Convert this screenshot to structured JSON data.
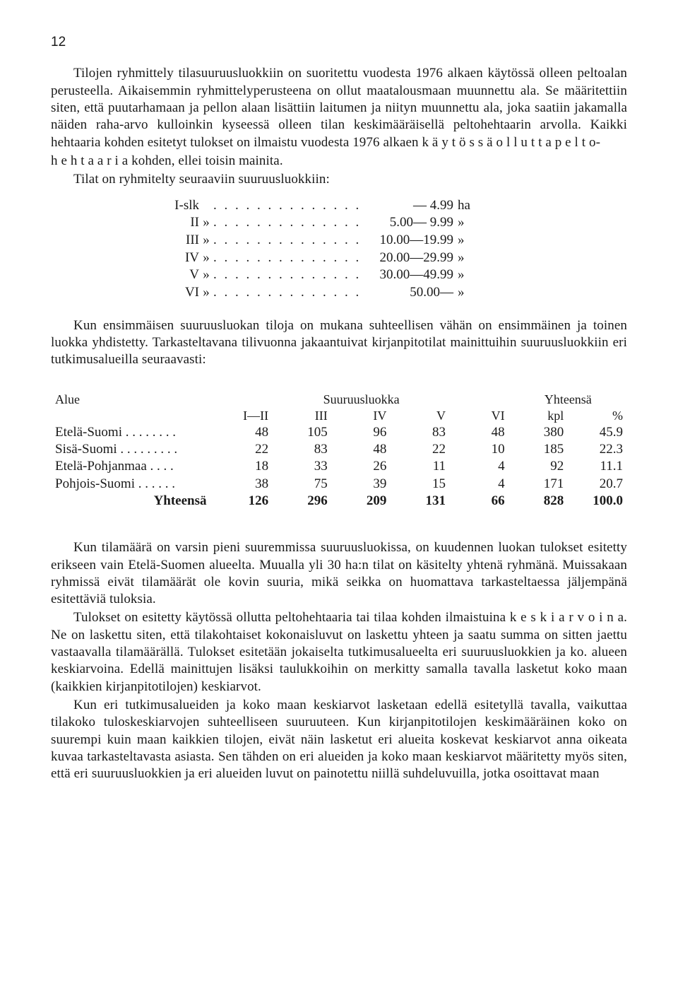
{
  "pageNumber": "12",
  "para1": "Tilojen ryhmittely tilasuuruusluokkiin on suoritettu vuodesta 1976 alkaen käytössä olleen peltoalan perusteella. Aikaisemmin ryhmittelyperusteena on ollut maatalousmaan muunnettu ala. Se määritettiin siten, että puutarhamaan ja pellon alaan lisättiin laitumen ja niityn muunnettu ala, joka saatiin jakamalla näiden raha-arvo kulloinkin kyseessä olleen tilan keskimääräisellä peltohehtaarin arvolla. Kaikki hehtaaria kohden esitetyt tulokset on ilmaistu vuodesta 1976 alkaen ",
  "para1b": " kohden, ellei toisin mainita.",
  "spaced1a": "k ä y t ö s s ä  o l l u t t a  p e l t o-",
  "spaced1b": "h e h t a a r i a",
  "para1c": "Tilat on ryhmitelty seuraaviin suuruusluokkiin:",
  "classList": {
    "dots": ". . . . . . . . . . . . . . . . . . . . . .",
    "rows": [
      {
        "cls": "I-slk",
        "mark": "",
        "range": "— 4.99",
        "unit": "ha"
      },
      {
        "cls": "II",
        "mark": "»",
        "range": "5.00— 9.99",
        "unit": "»"
      },
      {
        "cls": "III",
        "mark": "»",
        "range": "10.00—19.99",
        "unit": "»"
      },
      {
        "cls": "IV",
        "mark": "»",
        "range": "20.00—29.99",
        "unit": "»"
      },
      {
        "cls": "V",
        "mark": "»",
        "range": "30.00—49.99",
        "unit": "»"
      },
      {
        "cls": "VI",
        "mark": "»",
        "range": "50.00—",
        "unit": "»"
      }
    ]
  },
  "para2": "Kun ensimmäisen suuruusluokan tiloja on mukana suhteellisen vähän on ensimmäinen ja toinen luokka yhdistetty. Tarkasteltavana tilivuonna jakaantuivat kirjanpitotilat mainittuihin suuruusluokkiin eri tutkimusalueilla seuraavasti:",
  "regionTable": {
    "hdrAlue": "Alue",
    "hdrSuuruus": "Suuruusluokka",
    "hdrYhteensa": "Yhteensä",
    "cols": [
      "I—II",
      "III",
      "IV",
      "V",
      "VI",
      "kpl",
      "%"
    ],
    "rows": [
      {
        "region": "Etelä-Suomi",
        "dots": " . . . . . . . .",
        "v": [
          "48",
          "105",
          "96",
          "83",
          "48",
          "380",
          "45.9"
        ]
      },
      {
        "region": "Sisä-Suomi",
        "dots": " . . . . . . . . .",
        "v": [
          "22",
          "83",
          "48",
          "22",
          "10",
          "185",
          "22.3"
        ]
      },
      {
        "region": "Etelä-Pohjanmaa",
        "dots": " . . . .",
        "v": [
          "18",
          "33",
          "26",
          "11",
          "4",
          "92",
          "11.1"
        ]
      },
      {
        "region": "Pohjois-Suomi",
        "dots": " . . . . . .",
        "v": [
          "38",
          "75",
          "39",
          "15",
          "4",
          "171",
          "20.7"
        ]
      }
    ],
    "total": {
      "label": "Yhteensä",
      "v": [
        "126",
        "296",
        "209",
        "131",
        "66",
        "828",
        "100.0"
      ]
    }
  },
  "para3": "Kun tilamäärä on varsin pieni suuremmissa suuruusluokissa, on kuudennen luokan tulokset esitetty erikseen vain Etelä-Suomen alueelta. Muualla yli 30 ha:n tilat on käsitelty yhtenä ryhmänä. Muissakaan ryhmissä eivät tilamäärät ole kovin suuria, mikä seikka on huomattava tarkasteltaessa jäljempänä esitettäviä tuloksia.",
  "para4a": "Tulokset on esitetty käytössä ollutta peltohehtaaria tai tilaa kohden ilmaistuina ",
  "para4s": "k e s k i a r v o i n a.",
  "para4b": " Ne on laskettu siten, että tilakohtaiset kokonaisluvut on laskettu yhteen ja saatu summa on sitten jaettu vastaavalla tilamäärällä. Tulokset esitetään jokaiselta tutkimusalueelta eri suuruusluokkien ja ko. alueen keskiarvoina. Edellä mainittujen lisäksi taulukkoihin on merkitty samalla tavalla lasketut koko maan (kaikkien kirjanpitotilojen) keskiarvot.",
  "para5": "Kun eri tutkimusalueiden ja koko maan keskiarvot lasketaan edellä esitetyllä tavalla, vaikuttaa tilakoko tuloskeskiarvojen suhteelliseen suuruuteen. Kun kirjanpitotilojen keskimääräinen koko on suurempi kuin maan kaikkien tilojen, eivät näin lasketut eri alueita koskevat keskiarvot anna oikeata kuvaa tarkasteltavasta asiasta. Sen tähden on eri alueiden ja koko maan keskiarvot määritetty myös siten, että eri suuruusluokkien ja eri alueiden luvut on painotettu niillä suhdeluvuilla, jotka osoittavat maan"
}
